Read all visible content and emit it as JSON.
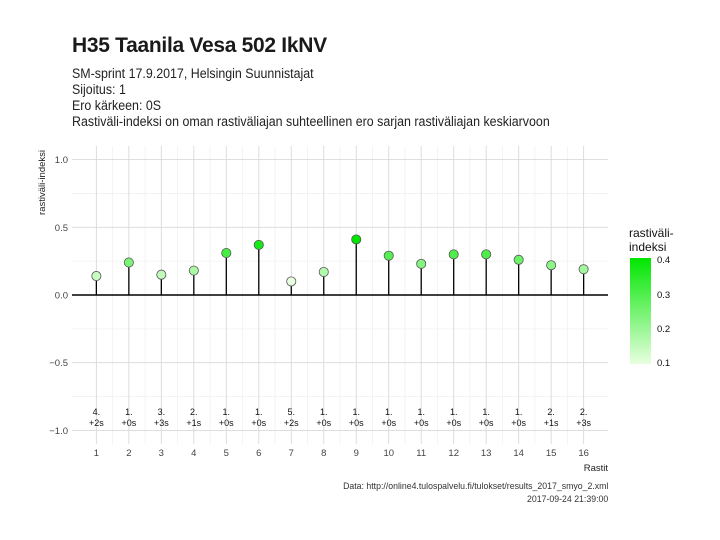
{
  "title": "H35 Taanila Vesa 502 IkNV",
  "subtitle_lines": [
    "SM-sprint 17.9.2017, Helsingin Suunnistajat",
    "Sijoitus: 1",
    "Ero kärkeen: 0S",
    "Rastiväli-indeksi on oman rastiväliajan suhteellinen ero sarjan rastiväliajan keskiarvoon"
  ],
  "caption": {
    "line1": "Data: http://online4.tulospalvelu.fi/tulokset/results_2017_smyo_2.xml",
    "line2": "2017-09-24 21:39:00"
  },
  "legend": {
    "title_line1": "rastiväli-",
    "title_line2": "indeksi",
    "labels": [
      "0.4",
      "0.3",
      "0.2",
      "0.1"
    ],
    "color_high": "#00e600",
    "color_low": "#e8ffe0"
  },
  "chart_data": {
    "type": "lollipop",
    "xlabel": "Rastit",
    "ylabel": "rastiväli-indeksi",
    "ylim": [
      -1.1,
      1.1
    ],
    "yticks": [
      -1.0,
      -0.5,
      0.0,
      0.5,
      1.0
    ],
    "ytick_labels": [
      "−1.0",
      "−0.5",
      "0.0",
      "0.5",
      "1.0"
    ],
    "categories": [
      "1",
      "2",
      "3",
      "4",
      "5",
      "6",
      "7",
      "8",
      "9",
      "10",
      "11",
      "12",
      "13",
      "14",
      "15",
      "16"
    ],
    "values": [
      0.14,
      0.24,
      0.15,
      0.18,
      0.31,
      0.37,
      0.1,
      0.17,
      0.41,
      0.29,
      0.23,
      0.3,
      0.3,
      0.26,
      0.22,
      0.19
    ],
    "positions": [
      "4.",
      "1.",
      "3.",
      "2.",
      "1.",
      "1.",
      "5.",
      "1.",
      "1.",
      "1.",
      "1.",
      "1.",
      "1.",
      "1.",
      "2.",
      "2."
    ],
    "time_diffs": [
      "+2s",
      "+0s",
      "+3s",
      "+1s",
      "+0s",
      "+0s",
      "+2s",
      "+0s",
      "+0s",
      "+0s",
      "+0s",
      "+0s",
      "+0s",
      "+0s",
      "+1s",
      "+3s"
    ],
    "color_scale": {
      "min": 0.1,
      "max": 0.4,
      "low": "#e8ffe0",
      "high": "#00e600"
    },
    "grid": true,
    "legend_position": "right"
  }
}
